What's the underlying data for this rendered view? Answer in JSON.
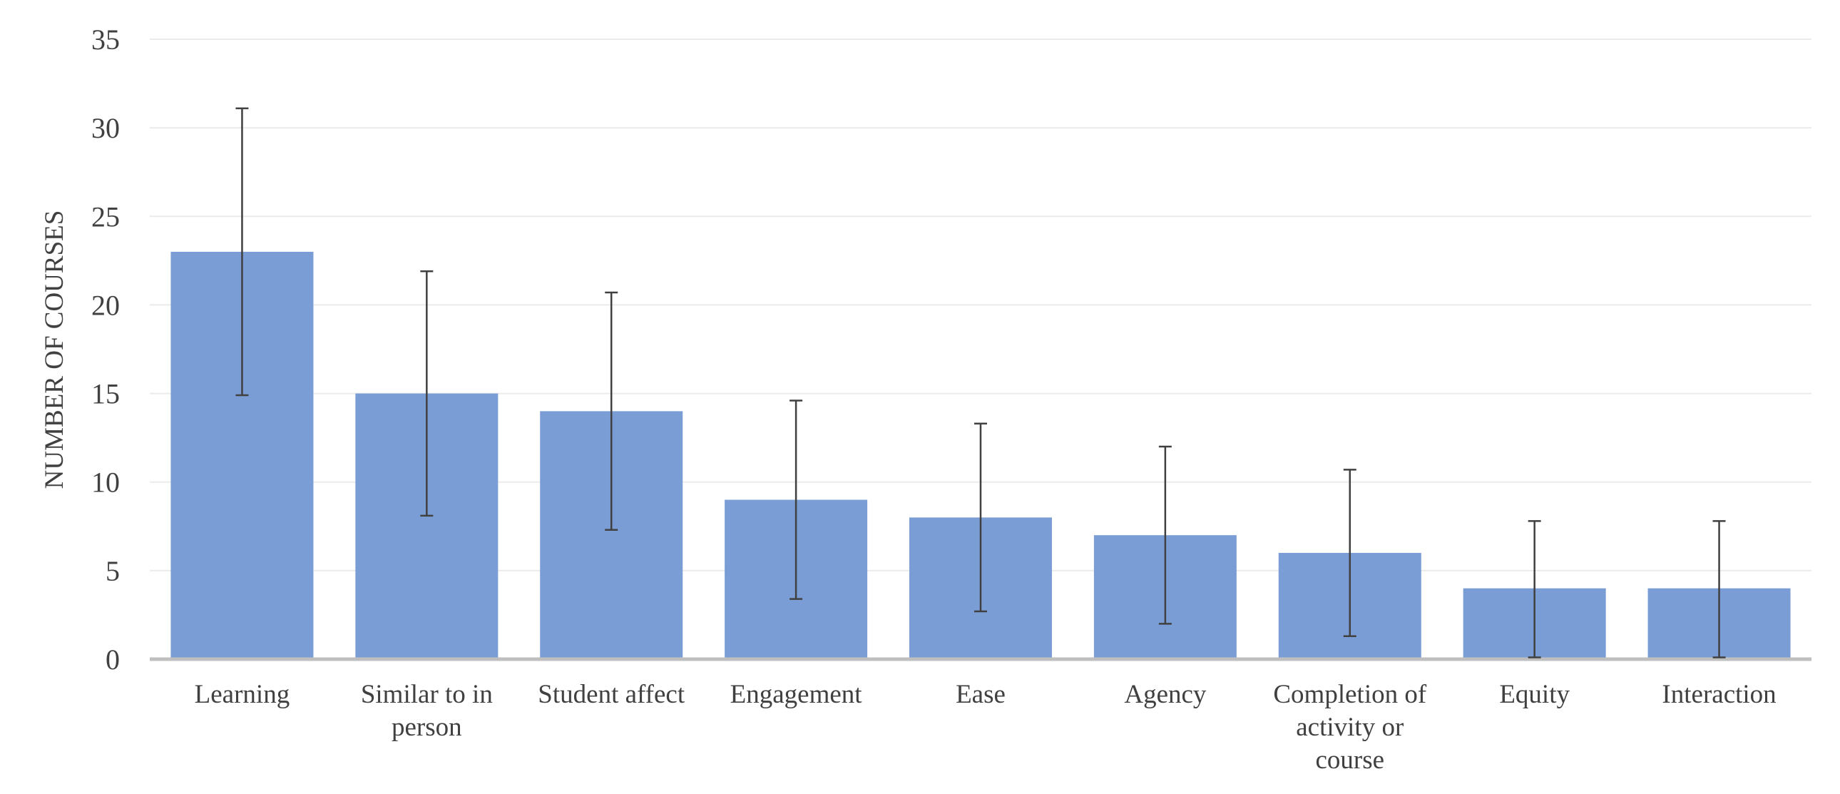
{
  "chart_data": {
    "type": "bar",
    "title": "",
    "xlabel": "",
    "ylabel": "NUMBER OF COURSES",
    "ylim": [
      0,
      35
    ],
    "yticks": [
      0,
      5,
      10,
      15,
      20,
      25,
      30,
      35
    ],
    "grid": true,
    "legend": "none",
    "categories": [
      "Learning",
      "Similar to in person",
      "Student affect",
      "Engagement",
      "Ease",
      "Agency",
      "Completion of activity or course",
      "Equity",
      "Interaction"
    ],
    "category_lines": [
      [
        "Learning"
      ],
      [
        "Similar to in",
        "person"
      ],
      [
        "Student affect"
      ],
      [
        "Engagement"
      ],
      [
        "Ease"
      ],
      [
        "Agency"
      ],
      [
        "Completion of",
        "activity or",
        "course"
      ],
      [
        "Equity"
      ],
      [
        "Interaction"
      ]
    ],
    "values": [
      23,
      15,
      14,
      9,
      8,
      7,
      6,
      4,
      4
    ],
    "error_bars": [
      {
        "low": 14.9,
        "high": 31.1
      },
      {
        "low": 8.1,
        "high": 21.9
      },
      {
        "low": 7.3,
        "high": 20.7
      },
      {
        "low": 3.4,
        "high": 14.6
      },
      {
        "low": 2.7,
        "high": 13.3
      },
      {
        "low": 2.0,
        "high": 12.0
      },
      {
        "low": 1.3,
        "high": 10.7
      },
      {
        "low": 0.1,
        "high": 7.8
      },
      {
        "low": 0.1,
        "high": 7.8
      }
    ],
    "colors": {
      "bar": "#7b9dd6",
      "error_bar": "#404040",
      "grid": "#ebebeb",
      "axis": "#bfbfbf",
      "text": "#404040"
    }
  }
}
